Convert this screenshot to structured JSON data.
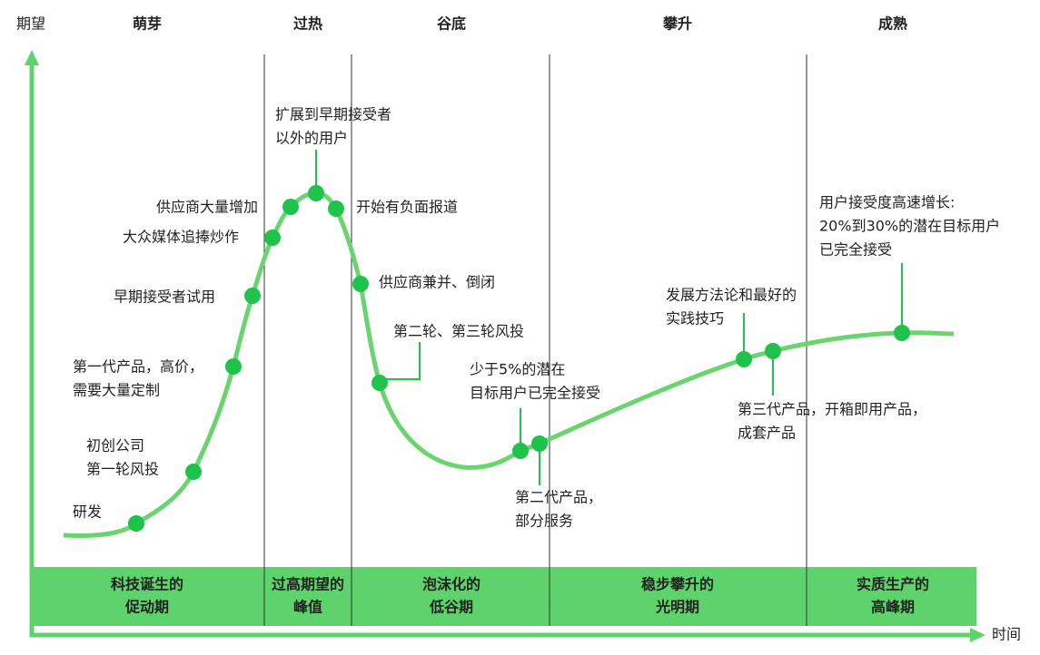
{
  "axes": {
    "y_label": "期望",
    "x_label": "时间"
  },
  "phases": [
    {
      "top": "萌芽",
      "bottom": [
        "科技诞生的",
        "促动期"
      ]
    },
    {
      "top": "过热",
      "bottom": [
        "过高期望的",
        "峰值"
      ]
    },
    {
      "top": "谷底",
      "bottom": [
        "泡沫化的",
        "低谷期"
      ]
    },
    {
      "top": "攀升",
      "bottom": [
        "稳步攀升的",
        "光明期"
      ]
    },
    {
      "top": "成熟",
      "bottom": [
        "实质生产的",
        "高峰期"
      ]
    }
  ],
  "annotations": [
    {
      "lines": [
        "研发"
      ]
    },
    {
      "lines": [
        "初创公司",
        "第一轮风投"
      ]
    },
    {
      "lines": [
        "第一代产品，高价，",
        "需要大量定制"
      ]
    },
    {
      "lines": [
        "早期接受者试用"
      ]
    },
    {
      "lines": [
        "大众媒体追捧炒作"
      ]
    },
    {
      "lines": [
        "供应商大量增加"
      ]
    },
    {
      "lines": [
        "扩展到早期接受者",
        "以外的用户"
      ]
    },
    {
      "lines": [
        "开始有负面报道"
      ]
    },
    {
      "lines": [
        "供应商兼并、倒闭"
      ]
    },
    {
      "lines": [
        "第二轮、第三轮风投"
      ]
    },
    {
      "lines": [
        "少于5%的潜在",
        "目标用户已完全接受"
      ]
    },
    {
      "lines": [
        "第二代产品，",
        "部分服务"
      ]
    },
    {
      "lines": [
        "发展方法论和最好的",
        "实践技巧"
      ]
    },
    {
      "lines": [
        "第三代产品，开箱即用产品，",
        "成套产品"
      ]
    },
    {
      "lines": [
        "用户接受度高速增长:",
        "20%到30%的潜在目标用户",
        "已完全接受"
      ]
    }
  ]
}
